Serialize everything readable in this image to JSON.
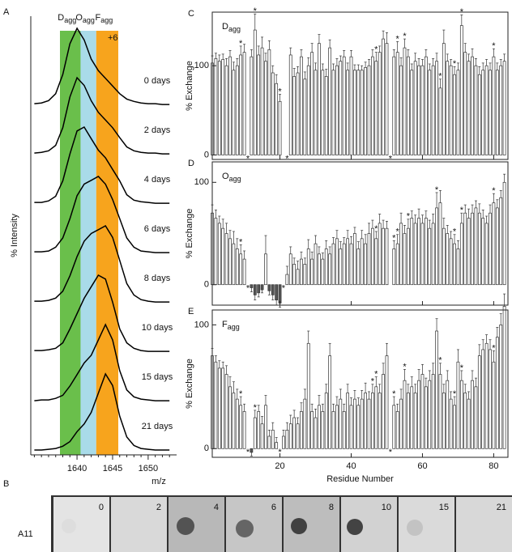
{
  "chart_data": [
    {
      "panel": "A",
      "type": "line",
      "xlabel": "m/z",
      "ylabel": "% Intensity",
      "xlim": [
        1633.5,
        1654
      ],
      "xticks": [
        1640,
        1645,
        1650
      ],
      "xminor": [
        1634,
        1635,
        1636,
        1637,
        1638,
        1639,
        1641,
        1642,
        1643,
        1644,
        1646,
        1647,
        1648,
        1649,
        1651,
        1652,
        1653
      ],
      "regions": [
        {
          "label": "D",
          "sub": "agg",
          "from": 1637.6,
          "to": 1640.5,
          "color": "#6abf4b"
        },
        {
          "label": "O",
          "sub": "agg",
          "from": 1640.5,
          "to": 1642.7,
          "color": "#a9dbe9"
        },
        {
          "label": "F",
          "sub": "agg",
          "from": 1642.7,
          "to": 1645.8,
          "color": "#f7a41d"
        }
      ],
      "annotation": "+6",
      "x": [
        1634,
        1635,
        1636,
        1637,
        1638,
        1639,
        1640,
        1641,
        1642,
        1643,
        1644,
        1645,
        1646,
        1647,
        1648,
        1649,
        1650,
        1651,
        1652,
        1653
      ],
      "series": [
        {
          "name": "0 days",
          "color": "#000",
          "values": [
            0.02,
            0.03,
            0.06,
            0.15,
            0.4,
            0.8,
            1.0,
            0.85,
            0.6,
            0.45,
            0.35,
            0.25,
            0.15,
            0.08,
            0.05,
            0.03,
            0.02,
            0.02,
            0.01,
            0.01
          ]
        },
        {
          "name": "2 days",
          "color": "#000",
          "values": [
            0.02,
            0.03,
            0.05,
            0.12,
            0.35,
            0.75,
            1.0,
            0.9,
            0.7,
            0.55,
            0.45,
            0.35,
            0.22,
            0.1,
            0.05,
            0.03,
            0.02,
            0.02,
            0.01,
            0.01
          ]
        },
        {
          "name": "4 days",
          "color": "#000",
          "values": [
            0.02,
            0.02,
            0.04,
            0.1,
            0.3,
            0.65,
            0.95,
            1.0,
            0.85,
            0.7,
            0.6,
            0.45,
            0.3,
            0.12,
            0.05,
            0.03,
            0.02,
            0.01,
            0.01,
            0.01
          ]
        },
        {
          "name": "6 days",
          "color": "#000",
          "values": [
            0.02,
            0.02,
            0.03,
            0.08,
            0.2,
            0.45,
            0.75,
            0.9,
            0.95,
            1.0,
            0.9,
            0.7,
            0.45,
            0.2,
            0.08,
            0.03,
            0.02,
            0.01,
            0.01,
            0.01
          ]
        },
        {
          "name": "8 days",
          "color": "#000",
          "values": [
            0.02,
            0.02,
            0.03,
            0.06,
            0.15,
            0.35,
            0.6,
            0.8,
            0.9,
            0.95,
            1.0,
            0.85,
            0.55,
            0.25,
            0.1,
            0.04,
            0.02,
            0.01,
            0.01,
            0.01
          ]
        },
        {
          "name": "10 days",
          "color": "#000",
          "values": [
            0.02,
            0.02,
            0.03,
            0.05,
            0.12,
            0.3,
            0.5,
            0.7,
            0.85,
            1.0,
            0.95,
            0.65,
            0.3,
            0.12,
            0.05,
            0.02,
            0.01,
            0.01,
            0.01,
            0.01
          ]
        },
        {
          "name": "15 days",
          "color": "#000",
          "values": [
            0.01,
            0.02,
            0.02,
            0.04,
            0.08,
            0.2,
            0.35,
            0.5,
            0.6,
            0.8,
            1.0,
            0.8,
            0.4,
            0.15,
            0.06,
            0.03,
            0.02,
            0.01,
            0.01,
            0.01
          ]
        },
        {
          "name": "21 days",
          "color": "#000",
          "values": [
            0.01,
            0.01,
            0.02,
            0.03,
            0.06,
            0.12,
            0.25,
            0.35,
            0.5,
            0.75,
            1.0,
            0.85,
            0.45,
            0.18,
            0.07,
            0.03,
            0.02,
            0.01,
            0.01,
            0.01
          ]
        }
      ]
    },
    {
      "panel": "C",
      "type": "bar",
      "label": "D",
      "label_sub": "agg",
      "ylabel": "% Exchange",
      "xlim": [
        1,
        84
      ],
      "xticks": [
        20,
        40,
        60,
        80
      ],
      "ylim": [
        -5,
        160
      ],
      "yticks": [
        0,
        100
      ],
      "bar_color": "#ffffff",
      "negative_color": "#555555",
      "star_label": "*",
      "starred": [
        9,
        11,
        13,
        20,
        22,
        47,
        51,
        53,
        55,
        65,
        69,
        71,
        80
      ],
      "x": [
        1,
        2,
        3,
        4,
        5,
        6,
        7,
        8,
        9,
        10,
        11,
        12,
        13,
        14,
        15,
        16,
        17,
        18,
        19,
        20,
        21,
        22,
        23,
        24,
        25,
        26,
        27,
        28,
        29,
        30,
        31,
        32,
        33,
        34,
        35,
        36,
        37,
        38,
        39,
        40,
        41,
        42,
        43,
        44,
        45,
        46,
        47,
        48,
        49,
        50,
        51,
        52,
        53,
        54,
        55,
        56,
        57,
        58,
        59,
        60,
        61,
        62,
        63,
        64,
        65,
        66,
        67,
        68,
        69,
        70,
        71,
        72,
        73,
        74,
        75,
        76,
        77,
        78,
        79,
        80,
        81,
        82,
        83
      ],
      "values": [
        103,
        108,
        105,
        107,
        100,
        110,
        95,
        100,
        112,
        115,
        null,
        110,
        140,
        112,
        120,
        105,
        118,
        92,
        80,
        60,
        null,
        null,
        112,
        88,
        92,
        110,
        85,
        100,
        115,
        95,
        125,
        95,
        88,
        120,
        95,
        100,
        105,
        110,
        95,
        110,
        95,
        95,
        95,
        98,
        100,
        110,
        105,
        115,
        130,
        125,
        null,
        110,
        115,
        100,
        120,
        110,
        95,
        105,
        100,
        100,
        110,
        95,
        100,
        105,
        75,
        125,
        105,
        100,
        90,
        95,
        145,
        115,
        105,
        110,
        100,
        90,
        95,
        100,
        95,
        110,
        95,
        100,
        105
      ],
      "errors": [
        8,
        6,
        7,
        6,
        8,
        7,
        9,
        8,
        10,
        9,
        null,
        8,
        18,
        10,
        12,
        9,
        10,
        8,
        10,
        8,
        null,
        null,
        8,
        9,
        7,
        8,
        8,
        9,
        10,
        8,
        10,
        7,
        8,
        9,
        7,
        8,
        6,
        7,
        8,
        7,
        6,
        6,
        5,
        6,
        7,
        8,
        10,
        7,
        9,
        12,
        null,
        8,
        12,
        9,
        10,
        8,
        7,
        9,
        8,
        7,
        8,
        7,
        8,
        9,
        10,
        15,
        8,
        7,
        9,
        8,
        12,
        10,
        8,
        9,
        8,
        9,
        8,
        7,
        8,
        9,
        8,
        7,
        8
      ]
    },
    {
      "panel": "D",
      "type": "bar",
      "label": "O",
      "label_sub": "agg",
      "ylabel": "% Exchange",
      "xlim": [
        1,
        84
      ],
      "xticks": [
        20,
        40,
        60,
        80
      ],
      "ylim": [
        -20,
        120
      ],
      "yticks": [
        0,
        100
      ],
      "bar_color": "#ffffff",
      "negative_color": "#555555",
      "star_label": "*",
      "starred": [
        9,
        11,
        21,
        47,
        52,
        53,
        56,
        64,
        69,
        71,
        80
      ],
      "x": [
        1,
        2,
        3,
        4,
        5,
        6,
        7,
        8,
        9,
        10,
        11,
        12,
        13,
        14,
        15,
        16,
        17,
        18,
        19,
        20,
        21,
        22,
        23,
        24,
        25,
        26,
        27,
        28,
        29,
        30,
        31,
        32,
        33,
        34,
        35,
        36,
        37,
        38,
        39,
        40,
        41,
        42,
        43,
        44,
        45,
        46,
        47,
        48,
        49,
        50,
        51,
        52,
        53,
        54,
        55,
        56,
        57,
        58,
        59,
        60,
        61,
        62,
        63,
        64,
        65,
        66,
        67,
        68,
        69,
        70,
        71,
        72,
        73,
        74,
        75,
        76,
        77,
        78,
        79,
        80,
        81,
        82,
        83
      ],
      "values": [
        70,
        65,
        60,
        55,
        50,
        45,
        40,
        35,
        30,
        25,
        null,
        -3,
        -10,
        -8,
        -5,
        30,
        -6,
        -10,
        -15,
        -18,
        null,
        10,
        30,
        20,
        15,
        25,
        20,
        35,
        25,
        40,
        30,
        25,
        35,
        30,
        40,
        45,
        35,
        40,
        45,
        40,
        50,
        35,
        45,
        40,
        50,
        55,
        45,
        60,
        55,
        55,
        null,
        35,
        40,
        60,
        50,
        55,
        65,
        60,
        65,
        60,
        65,
        55,
        60,
        75,
        80,
        55,
        50,
        45,
        40,
        35,
        60,
        70,
        65,
        70,
        75,
        70,
        65,
        60,
        70,
        80,
        75,
        85,
        100
      ],
      "errors": [
        8,
        8,
        7,
        9,
        10,
        8,
        12,
        10,
        9,
        8,
        null,
        4,
        5,
        4,
        3,
        18,
        4,
        5,
        5,
        4,
        null,
        8,
        7,
        6,
        8,
        7,
        6,
        9,
        7,
        8,
        7,
        6,
        8,
        7,
        6,
        8,
        7,
        6,
        8,
        7,
        6,
        7,
        8,
        9,
        10,
        8,
        7,
        9,
        8,
        7,
        null,
        8,
        9,
        10,
        8,
        9,
        7,
        8,
        9,
        8,
        7,
        8,
        9,
        15,
        12,
        10,
        8,
        7,
        9,
        8,
        10,
        8,
        9,
        8,
        7,
        9,
        8,
        7,
        8,
        9,
        8,
        7,
        8
      ]
    },
    {
      "panel": "E",
      "type": "bar",
      "label": "F",
      "label_sub": "agg",
      "ylabel": "% Exchange",
      "xlabel": "Residue Number",
      "xlim": [
        1,
        84
      ],
      "xticks": [
        20,
        40,
        60,
        80
      ],
      "ylim": [
        -7,
        112
      ],
      "yticks": [
        0,
        100
      ],
      "bar_color": "#ffffff",
      "negative_color": "#555555",
      "star_label": "*",
      "starred": [
        9,
        11,
        13,
        20,
        46,
        47,
        51,
        52,
        55,
        65,
        69,
        71,
        80
      ],
      "x": [
        1,
        2,
        3,
        4,
        5,
        6,
        7,
        8,
        9,
        10,
        11,
        12,
        13,
        14,
        15,
        16,
        17,
        18,
        19,
        20,
        21,
        22,
        23,
        24,
        25,
        26,
        27,
        28,
        29,
        30,
        31,
        32,
        33,
        34,
        35,
        36,
        37,
        38,
        39,
        40,
        41,
        42,
        43,
        44,
        45,
        46,
        47,
        48,
        49,
        50,
        51,
        52,
        53,
        54,
        55,
        56,
        57,
        58,
        59,
        60,
        61,
        62,
        63,
        64,
        65,
        66,
        67,
        68,
        69,
        70,
        71,
        72,
        73,
        74,
        75,
        76,
        77,
        78,
        79,
        80,
        81,
        82,
        83
      ],
      "values": [
        75,
        70,
        65,
        65,
        60,
        50,
        45,
        40,
        35,
        30,
        null,
        -3,
        25,
        30,
        20,
        35,
        10,
        15,
        5,
        null,
        10,
        15,
        20,
        25,
        20,
        30,
        40,
        85,
        30,
        25,
        35,
        30,
        45,
        75,
        30,
        35,
        40,
        30,
        45,
        35,
        40,
        35,
        40,
        45,
        40,
        45,
        50,
        45,
        60,
        75,
        null,
        35,
        30,
        40,
        55,
        45,
        50,
        45,
        55,
        60,
        50,
        55,
        60,
        95,
        60,
        45,
        55,
        40,
        35,
        70,
        55,
        45,
        40,
        55,
        50,
        75,
        80,
        85,
        80,
        70,
        90,
        100,
        115
      ],
      "errors": [
        6,
        5,
        6,
        5,
        7,
        8,
        9,
        8,
        7,
        6,
        null,
        3,
        6,
        5,
        6,
        8,
        5,
        6,
        4,
        null,
        5,
        6,
        7,
        6,
        5,
        7,
        8,
        10,
        6,
        7,
        8,
        6,
        7,
        10,
        6,
        7,
        8,
        6,
        7,
        6,
        7,
        6,
        7,
        8,
        6,
        7,
        8,
        7,
        9,
        10,
        null,
        7,
        6,
        8,
        9,
        7,
        8,
        7,
        9,
        8,
        7,
        8,
        9,
        10,
        9,
        7,
        8,
        6,
        7,
        10,
        8,
        7,
        6,
        8,
        7,
        9,
        8,
        7,
        8,
        9,
        8,
        9,
        10
      ]
    }
  ],
  "blot": {
    "panel": "B",
    "row_label": "A11",
    "lanes": [
      "0",
      "2",
      "4",
      "6",
      "8",
      "10",
      "15",
      "21"
    ]
  }
}
